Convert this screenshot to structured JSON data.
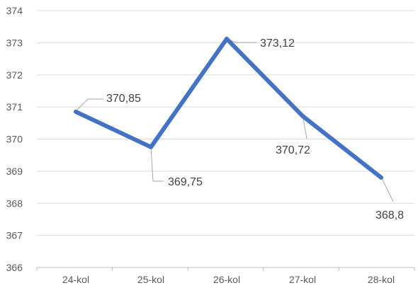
{
  "chart_data": {
    "type": "line",
    "title": "",
    "xlabel": "",
    "ylabel": "",
    "categories": [
      "24-kol",
      "25-kol",
      "26-kol",
      "27-kol",
      "28-kol"
    ],
    "series": [
      {
        "values": [
          370.85,
          369.75,
          373.12,
          370.72,
          368.8
        ],
        "labels": [
          "370,85",
          "369,75",
          "373,12",
          "370,72",
          "368,8"
        ]
      }
    ],
    "ylim": [
      366,
      374
    ],
    "yticks": [
      "366",
      "367",
      "368",
      "369",
      "370",
      "371",
      "372",
      "373",
      "374"
    ],
    "grid": true,
    "legend": "none",
    "colors": {
      "series": "#4472c4",
      "grid": "#d9d9d9",
      "text": "#595959"
    }
  }
}
